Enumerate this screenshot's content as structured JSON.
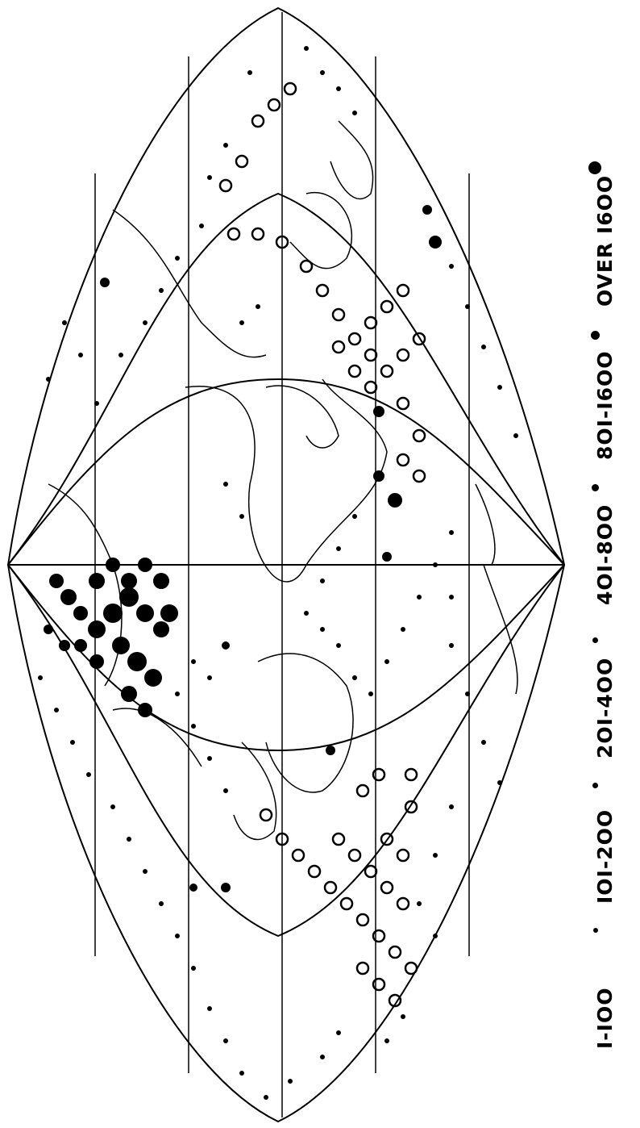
{
  "legend": {
    "items": [
      {
        "label": "I-IOO",
        "symbol": "tiny-dot"
      },
      {
        "label": "IOI-2OO",
        "symbol": "small-dot"
      },
      {
        "label": "2OI-4OO",
        "symbol": "small-dot"
      },
      {
        "label": "4OI-8OO",
        "symbol": "medium-dot"
      },
      {
        "label": "8OI-I6OO",
        "symbol": "large-dot"
      },
      {
        "label": "OVER I6OO",
        "symbol": "largest-dot"
      }
    ]
  },
  "colors": {
    "ink": "#000000",
    "paper": "#ffffff"
  }
}
